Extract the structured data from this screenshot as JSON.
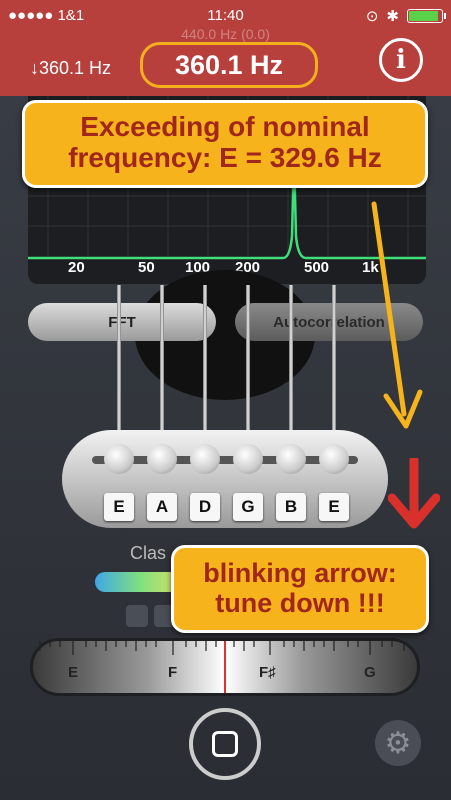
{
  "status_bar": {
    "carrier": "●●●●● 1&1",
    "time": "11:40"
  },
  "header": {
    "reference_text": "440.0 Hz (0.0)",
    "current_frequency": "↓360.1 Hz",
    "big_frequency": "360.1 Hz",
    "info_glyph": "i"
  },
  "spectrum": {
    "tick_labels": [
      "20",
      "50",
      "100",
      "200",
      "500",
      "1k"
    ],
    "line_color": "#3fe07a"
  },
  "mode_buttons": {
    "fft_label": "FFT",
    "autocorrelation_label": "Autocorrelation"
  },
  "strings": [
    "E",
    "A",
    "D",
    "G",
    "B",
    "E"
  ],
  "tuning": {
    "mode_label": "Clas",
    "scale_labels": [
      "E",
      "F",
      "F♯",
      "G"
    ]
  },
  "callouts": {
    "top_line1": "Exceeding of nominal",
    "top_line2": "frequency: E = 329.6 Hz",
    "bottom_line1": "blinking arrow:",
    "bottom_line2": "tune down !!!"
  },
  "colors": {
    "header": "#b7403c",
    "callout": "#f6b31c",
    "callout_text": "#a1261b",
    "arrow": "#d9302c"
  },
  "icons": [
    "wifi-icon",
    "lock-rotation-icon",
    "bluetooth-icon",
    "battery-icon",
    "info-icon",
    "down-arrow-icon",
    "gear-icon",
    "stop-icon"
  ]
}
